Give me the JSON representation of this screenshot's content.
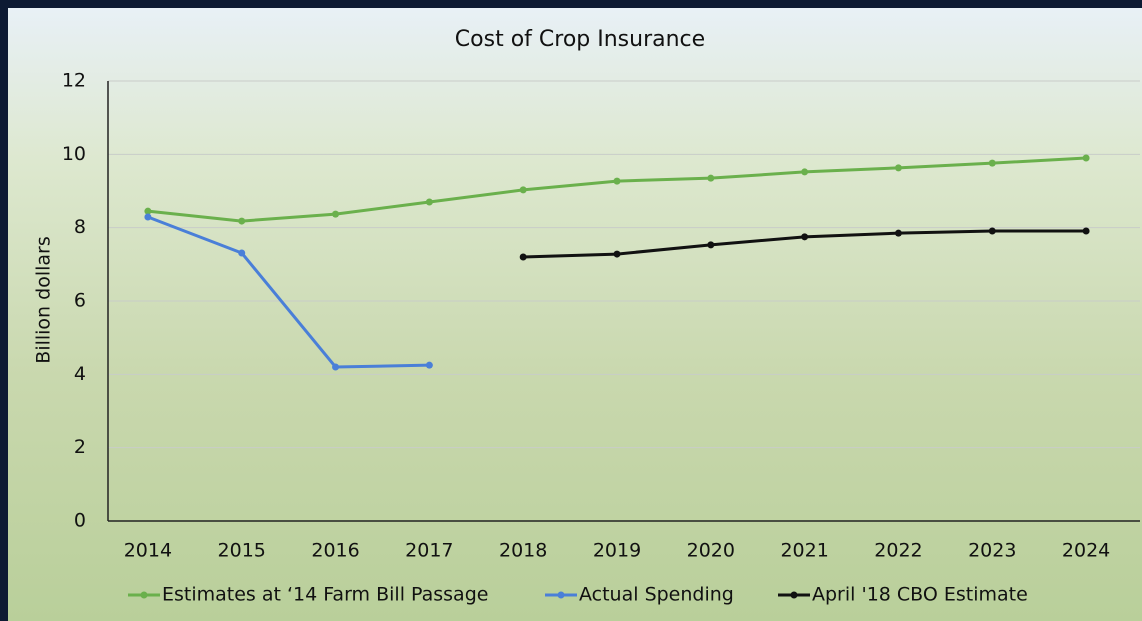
{
  "chart_data": {
    "type": "line",
    "title": "Cost of Crop Insurance",
    "y_label": "Billion dollars",
    "categories": [
      "2014",
      "2015",
      "2016",
      "2017",
      "2018",
      "2019",
      "2020",
      "2021",
      "2022",
      "2023",
      "2024"
    ],
    "series": [
      {
        "name": "Estimates at ‘14 Farm Bill Passage",
        "color": "#6ab04c",
        "values": [
          8.45,
          8.18,
          8.37,
          8.7,
          9.03,
          9.27,
          9.35,
          9.52,
          9.63,
          9.76,
          9.9
        ]
      },
      {
        "name": "Actual Spending",
        "color": "#4a7fd8",
        "values": [
          8.29,
          7.31,
          4.2,
          4.25,
          null,
          null,
          null,
          null,
          null,
          null,
          null
        ]
      },
      {
        "name": "April '18 CBO Estimate",
        "color": "#111111",
        "values": [
          null,
          null,
          null,
          null,
          7.2,
          7.28,
          7.53,
          7.75,
          7.85,
          7.91,
          7.91
        ]
      }
    ],
    "ylim": [
      0,
      12
    ],
    "yticks": [
      0,
      2,
      4,
      6,
      8,
      10,
      12
    ],
    "grid": true,
    "legend": "bottom"
  }
}
